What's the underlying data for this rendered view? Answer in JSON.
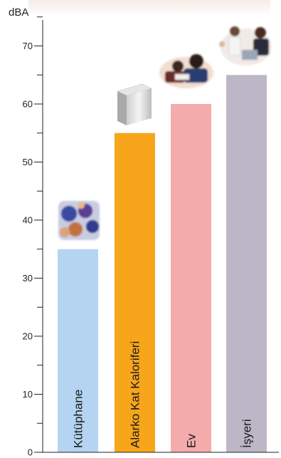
{
  "chart_data": {
    "type": "bar",
    "title": "",
    "xlabel": "",
    "ylabel": "dBA",
    "ylim": [
      0,
      75
    ],
    "major_ticks": [
      0,
      10,
      20,
      30,
      40,
      50,
      60,
      70
    ],
    "minor_step": 5,
    "grid": false,
    "categories": [
      "Kütüphane",
      "Alarko Kat Kaloriferi",
      "Ev",
      "İşyeri"
    ],
    "values": [
      35,
      55,
      60,
      65
    ],
    "colors": [
      "#b4d4f1",
      "#f7a51b",
      "#f4abab",
      "#bdb6c6"
    ],
    "bar_images": [
      "library-photo",
      "boiler-unit-photo",
      "family-home-photo",
      "office-workers-photo"
    ]
  }
}
